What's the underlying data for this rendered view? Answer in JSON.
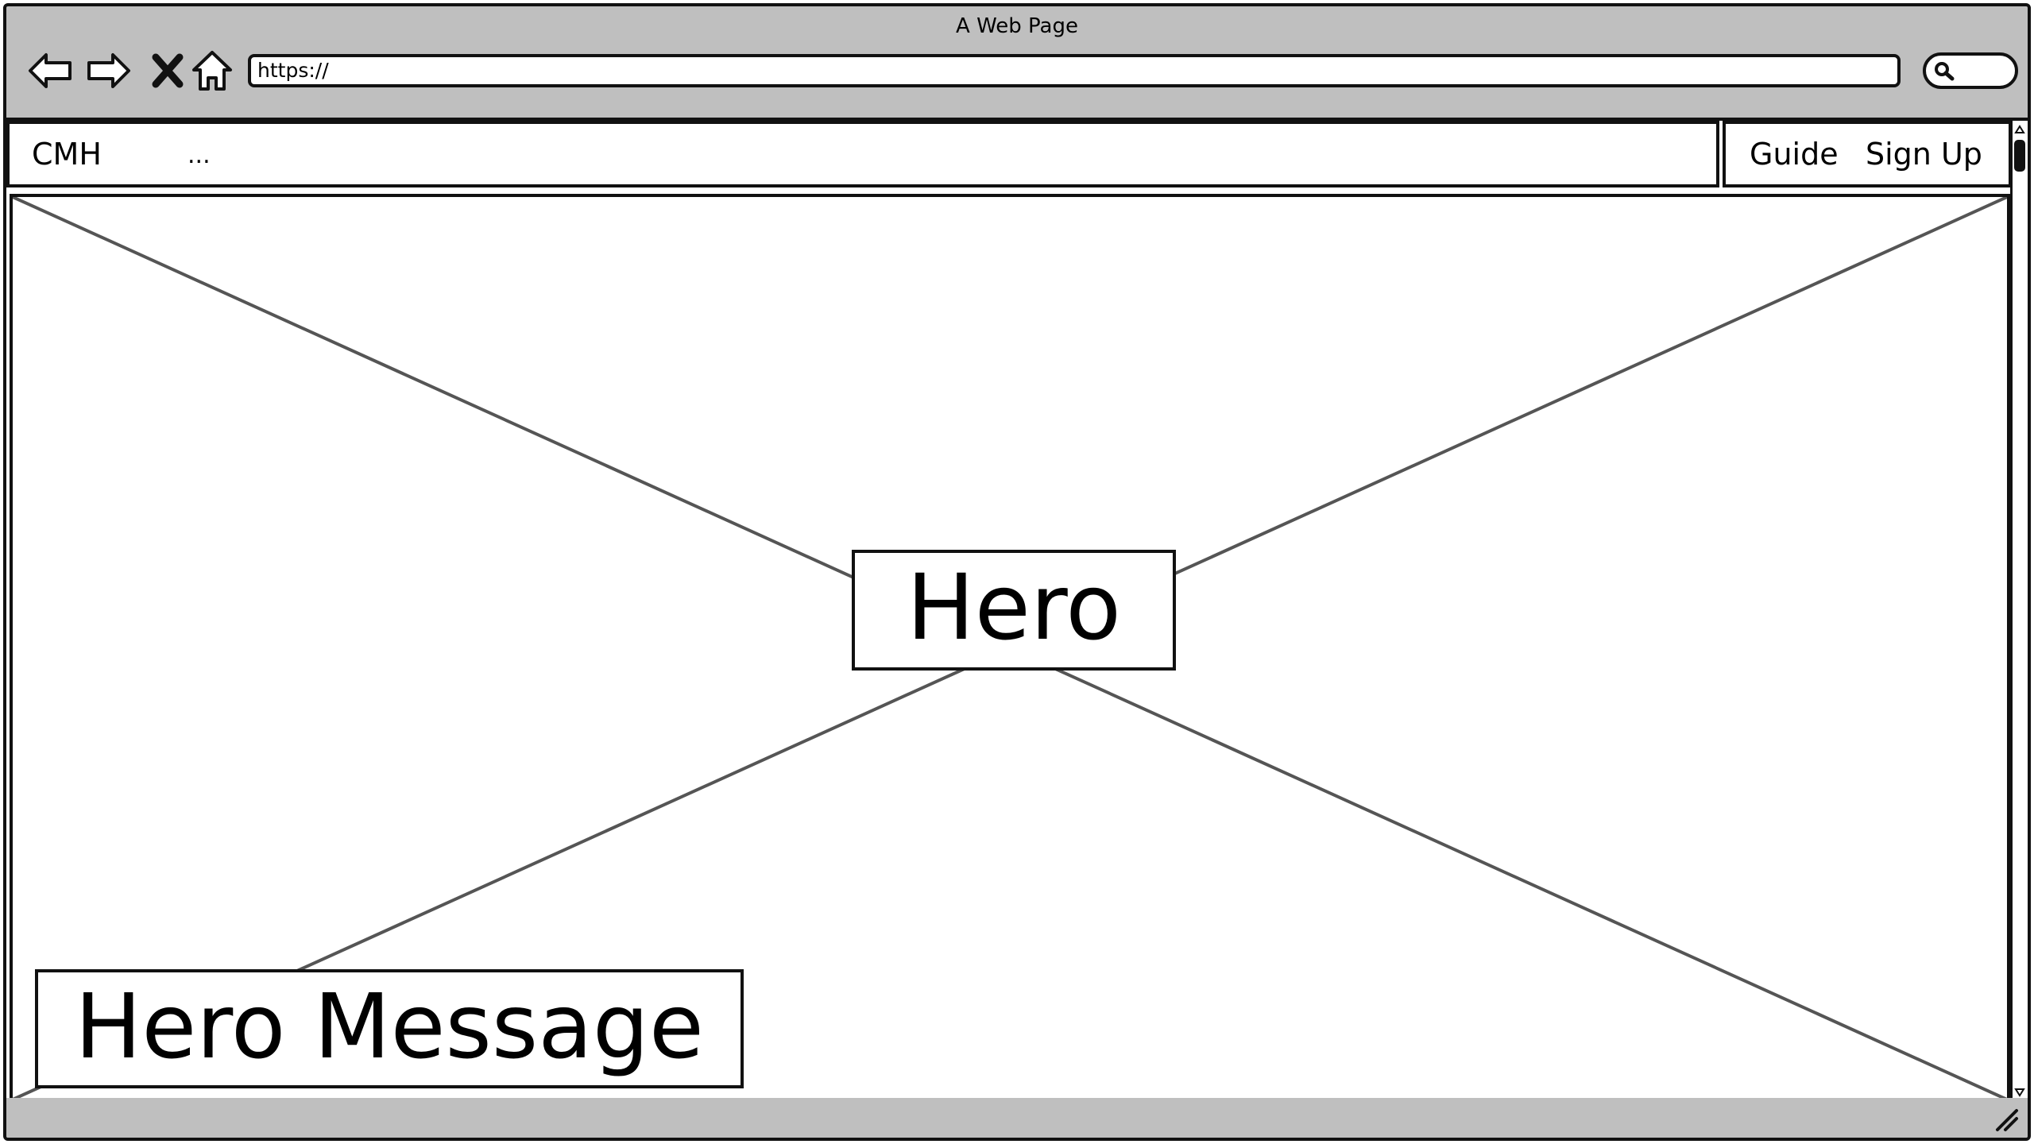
{
  "browser": {
    "title": "A Web Page",
    "address": "https://"
  },
  "header": {
    "brand": "CMH",
    "more": "...",
    "links": [
      {
        "label": "Guide"
      },
      {
        "label": "Sign Up"
      }
    ]
  },
  "hero": {
    "label": "Hero",
    "message": "Hero Message"
  },
  "icons": {
    "back": "arrow-left-icon",
    "forward": "arrow-right-icon",
    "stop": "close-icon",
    "home": "home-icon",
    "search": "search-icon",
    "resize": "resize-grip-icon"
  },
  "colors": {
    "chrome": "#bfbfbf",
    "stroke": "#111111",
    "placeholder_lines": "#555555"
  }
}
